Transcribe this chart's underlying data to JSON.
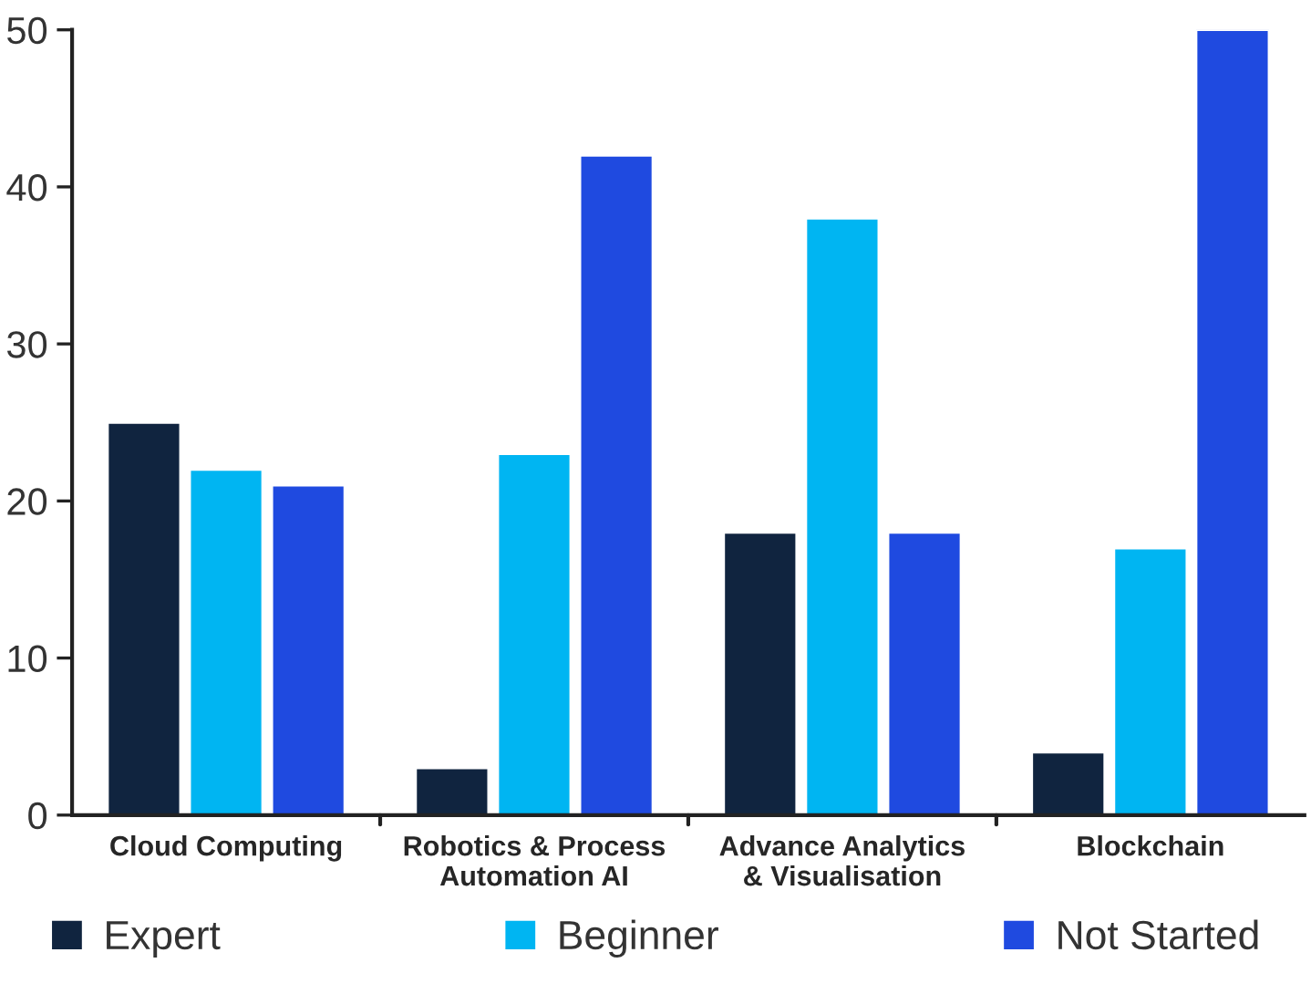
{
  "chart_data": {
    "type": "bar",
    "categories": [
      "Cloud Computing",
      "Robotics & Process\nAutomation AI",
      "Advance Analytics\n& Visualisation",
      "Blockchain"
    ],
    "series": [
      {
        "name": "Expert",
        "color": "#10243f",
        "values": [
          25,
          3,
          18,
          4
        ]
      },
      {
        "name": "Beginner",
        "color": "#00b5f2",
        "values": [
          22,
          23,
          38,
          17
        ]
      },
      {
        "name": "Not Started",
        "color": "#1f4ae0",
        "values": [
          21,
          42,
          18,
          50
        ]
      }
    ],
    "ylim": [
      0,
      50
    ],
    "yticks": [
      0,
      10,
      20,
      30,
      40,
      50
    ],
    "grid": false,
    "legend": "bottom"
  }
}
